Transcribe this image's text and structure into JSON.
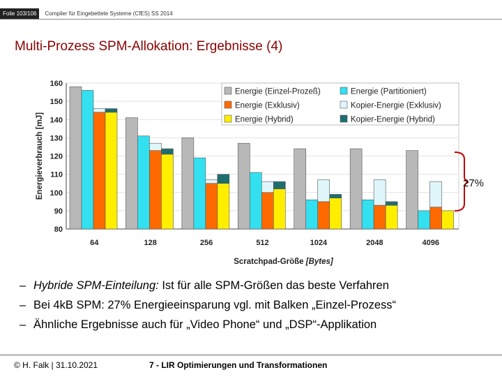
{
  "header": {
    "folio": "Folie 103/106",
    "course": "Compiler für Eingebettete Systeme (CfES) SS 2014"
  },
  "slide_title": "Multi-Prozess SPM-Allokation: Ergebnisse (4)",
  "annotation": "27%",
  "bullets": [
    {
      "dash": "–",
      "italic": "Hybride SPM-Einteilung:",
      "text": " Ist für alle SPM-Größen das beste Verfahren"
    },
    {
      "dash": "–",
      "italic": "",
      "text": "Bei 4kB SPM: 27% Energieeinsparung vgl. mit Balken „Einzel-Prozess“"
    },
    {
      "dash": "–",
      "italic": "",
      "text": "Ähnliche Ergebnisse auch für „Video Phone“ und „DSP“-Applikation"
    }
  ],
  "footer": {
    "left": "© H. Falk | 31.10.2021",
    "right": "7 - LIR Optimierungen und Transformationen"
  },
  "colors": {
    "title": "#8b0000",
    "annotation": "#c00000"
  },
  "chart_data": {
    "type": "bar",
    "stacked_components": true,
    "xlabel_parts": [
      "Scratchpad-Größe ",
      "[Bytes]"
    ],
    "ylabel": "Energieverbrauch [mJ]",
    "ylim": [
      80,
      160
    ],
    "yticks": [
      80,
      90,
      100,
      110,
      120,
      130,
      140,
      150,
      160
    ],
    "categories": [
      "64",
      "128",
      "256",
      "512",
      "1024",
      "2048",
      "4096"
    ],
    "legend_position": "top-right",
    "legend": [
      {
        "name": "Energie (Einzel-Prozeß)",
        "color": "#b8b8b8"
      },
      {
        "name": "Energie (Partitioniert)",
        "color": "#33e0f0"
      },
      {
        "name": "Energie (Exklusiv)",
        "color": "#ff6a00"
      },
      {
        "name": "Kopier-Energie (Exklusiv)",
        "color": "#dff6fb"
      },
      {
        "name": "Energie (Hybrid)",
        "color": "#ffee00"
      },
      {
        "name": "Kopier-Energie (Hybrid)",
        "color": "#1e6e70"
      }
    ],
    "bars": [
      {
        "name": "Energie (Einzel-Prozeß)",
        "color": "#b8b8b8",
        "values": [
          158,
          141,
          130,
          127,
          124,
          124,
          123
        ]
      },
      {
        "name": "Energie (Partitioniert)",
        "color": "#33e0f0",
        "values": [
          156,
          131,
          119,
          111,
          96,
          96,
          90
        ]
      },
      {
        "name": "Energie (Exklusiv)",
        "color": "#ff6a00",
        "values": [
          144,
          123,
          105,
          100,
          95,
          93,
          92
        ],
        "copy": {
          "name": "Kopier-Energie (Exklusiv)",
          "color": "#dff6fb",
          "values": [
            2,
            4,
            2,
            6,
            12,
            14,
            14
          ]
        }
      },
      {
        "name": "Energie (Hybrid)",
        "color": "#ffee00",
        "values": [
          144,
          121,
          105,
          102,
          97,
          93,
          90
        ],
        "copy": {
          "name": "Kopier-Energie (Hybrid)",
          "color": "#1e6e70",
          "values": [
            2,
            3,
            5,
            4,
            2,
            2,
            0
          ]
        }
      }
    ]
  }
}
